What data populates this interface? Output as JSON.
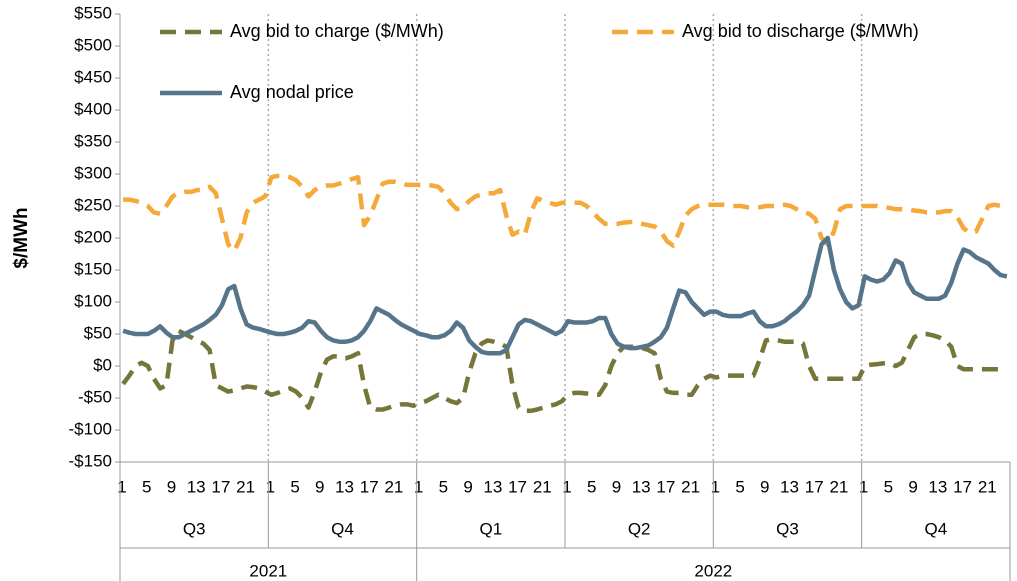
{
  "chart_data": {
    "type": "line",
    "ylabel": "$/MWh",
    "ylim": [
      -150,
      550
    ],
    "yticks": [
      {
        "value": -150,
        "label": "-$150"
      },
      {
        "value": -100,
        "label": "-$100"
      },
      {
        "value": -50,
        "label": "-$50"
      },
      {
        "value": 0,
        "label": "$0"
      },
      {
        "value": 50,
        "label": "$50"
      },
      {
        "value": 100,
        "label": "$100"
      },
      {
        "value": 150,
        "label": "$150"
      },
      {
        "value": 200,
        "label": "$200"
      },
      {
        "value": 250,
        "label": "$250"
      },
      {
        "value": 300,
        "label": "$300"
      },
      {
        "value": 350,
        "label": "$350"
      },
      {
        "value": 400,
        "label": "$400"
      },
      {
        "value": 450,
        "label": "$450"
      },
      {
        "value": 500,
        "label": "$500"
      },
      {
        "value": 550,
        "label": "$550"
      }
    ],
    "years": [
      {
        "label": "2021",
        "quarters": [
          "Q3",
          "Q4"
        ]
      },
      {
        "label": "2022",
        "quarters": [
          "Q1",
          "Q2",
          "Q3",
          "Q4"
        ]
      }
    ],
    "categories": [
      "1",
      null,
      null,
      null,
      "5",
      null,
      null,
      null,
      "9",
      null,
      null,
      null,
      "13",
      null,
      null,
      null,
      "17",
      null,
      null,
      null,
      "21",
      null,
      null,
      null,
      "1",
      null,
      null,
      null,
      "5",
      null,
      null,
      null,
      "9",
      null,
      null,
      null,
      "13",
      null,
      null,
      null,
      "17",
      null,
      null,
      null,
      "21",
      null,
      null,
      null,
      "1",
      null,
      null,
      null,
      "5",
      null,
      null,
      null,
      "9",
      null,
      null,
      null,
      "13",
      null,
      null,
      null,
      "17",
      null,
      null,
      null,
      "21",
      null,
      null,
      null,
      "1",
      null,
      null,
      null,
      "5",
      null,
      null,
      null,
      "9",
      null,
      null,
      null,
      "13",
      null,
      null,
      null,
      "17",
      null,
      null,
      null,
      "21",
      null,
      null,
      null,
      "1",
      null,
      null,
      null,
      "5",
      null,
      null,
      null,
      "9",
      null,
      null,
      null,
      "13",
      null,
      null,
      null,
      "17",
      null,
      null,
      null,
      "21",
      null,
      null,
      null,
      "1",
      null,
      null,
      null,
      "5",
      null,
      null,
      null,
      "9",
      null,
      null,
      null,
      "13",
      null,
      null,
      null,
      "17",
      null,
      null,
      null,
      "21",
      null,
      null,
      null
    ],
    "series": [
      {
        "name": "Avg bid to charge ($/MWh)",
        "color": "#76763a",
        "dashed": true,
        "values": [
          -28,
          -15,
          0,
          5,
          0,
          -20,
          -35,
          -30,
          40,
          55,
          50,
          45,
          40,
          35,
          25,
          -30,
          -35,
          -40,
          -38,
          -35,
          -32,
          -33,
          -35,
          -40,
          -45,
          -42,
          -38,
          -35,
          -40,
          -50,
          -65,
          -40,
          -10,
          10,
          15,
          15,
          12,
          15,
          20,
          -30,
          -65,
          -68,
          -68,
          -65,
          -62,
          -60,
          -60,
          -62,
          -58,
          -55,
          -50,
          -45,
          -50,
          -55,
          -58,
          -50,
          -10,
          20,
          35,
          40,
          38,
          35,
          30,
          -30,
          -65,
          -70,
          -70,
          -68,
          -65,
          -62,
          -60,
          -55,
          -45,
          -42,
          -42,
          -43,
          -45,
          -45,
          -30,
          0,
          20,
          30,
          30,
          30,
          28,
          25,
          20,
          -20,
          -40,
          -42,
          -42,
          -45,
          -45,
          -30,
          -20,
          -15,
          -18,
          -15,
          -15,
          -15,
          -15,
          -15,
          -15,
          10,
          40,
          42,
          40,
          38,
          38,
          38,
          35,
          0,
          -20,
          -20,
          -20,
          -20,
          -20,
          -20,
          -20,
          -20,
          0,
          2,
          3,
          4,
          5,
          0,
          5,
          25,
          45,
          50,
          50,
          48,
          45,
          40,
          30,
          0,
          -5,
          -5,
          -5,
          -5,
          -5,
          -5,
          -5,
          -5
        ]
      },
      {
        "name": "Avg bid to discharge ($/MWh)",
        "color": "#f5a93a",
        "dashed": true,
        "values": [
          260,
          260,
          258,
          255,
          250,
          240,
          238,
          250,
          265,
          270,
          272,
          272,
          275,
          275,
          280,
          270,
          230,
          190,
          180,
          200,
          240,
          255,
          260,
          265,
          295,
          297,
          297,
          295,
          290,
          280,
          265,
          275,
          280,
          282,
          282,
          285,
          288,
          292,
          295,
          220,
          235,
          260,
          285,
          288,
          288,
          285,
          283,
          283,
          283,
          283,
          282,
          280,
          270,
          255,
          245,
          248,
          258,
          265,
          268,
          270,
          270,
          275,
          235,
          205,
          210,
          205,
          240,
          262,
          258,
          255,
          252,
          255,
          255,
          255,
          255,
          250,
          240,
          230,
          222,
          222,
          222,
          224,
          225,
          225,
          222,
          220,
          218,
          210,
          195,
          188,
          210,
          235,
          245,
          250,
          252,
          252,
          252,
          252,
          250,
          250,
          250,
          248,
          248,
          248,
          250,
          250,
          250,
          252,
          250,
          245,
          240,
          238,
          230,
          200,
          190,
          210,
          245,
          250,
          250,
          250,
          250,
          250,
          250,
          248,
          247,
          245,
          245,
          245,
          243,
          242,
          240,
          240,
          240,
          242,
          242,
          232,
          215,
          208,
          210,
          230,
          250,
          252,
          250,
          250
        ]
      },
      {
        "name": "Avg nodal price",
        "color": "#56748a",
        "dashed": false,
        "values": [
          55,
          52,
          50,
          50,
          50,
          55,
          62,
          52,
          45,
          45,
          50,
          55,
          60,
          65,
          72,
          80,
          95,
          120,
          125,
          90,
          65,
          60,
          58,
          55,
          52,
          50,
          50,
          52,
          55,
          60,
          70,
          68,
          55,
          45,
          40,
          38,
          38,
          40,
          45,
          55,
          70,
          90,
          85,
          80,
          72,
          65,
          60,
          55,
          50,
          48,
          45,
          45,
          48,
          55,
          68,
          60,
          40,
          30,
          22,
          20,
          20,
          20,
          25,
          45,
          65,
          72,
          70,
          65,
          60,
          55,
          50,
          55,
          70,
          68,
          68,
          68,
          70,
          75,
          75,
          50,
          35,
          30,
          28,
          28,
          30,
          32,
          38,
          45,
          60,
          90,
          118,
          115,
          100,
          90,
          80,
          85,
          85,
          80,
          78,
          78,
          78,
          82,
          85,
          70,
          62,
          62,
          65,
          70,
          78,
          85,
          95,
          110,
          150,
          190,
          200,
          150,
          120,
          100,
          90,
          95,
          140,
          135,
          132,
          135,
          145,
          165,
          160,
          130,
          115,
          110,
          105,
          105,
          105,
          110,
          130,
          160,
          182,
          178,
          170,
          165,
          160,
          150,
          142,
          140
        ]
      }
    ]
  }
}
